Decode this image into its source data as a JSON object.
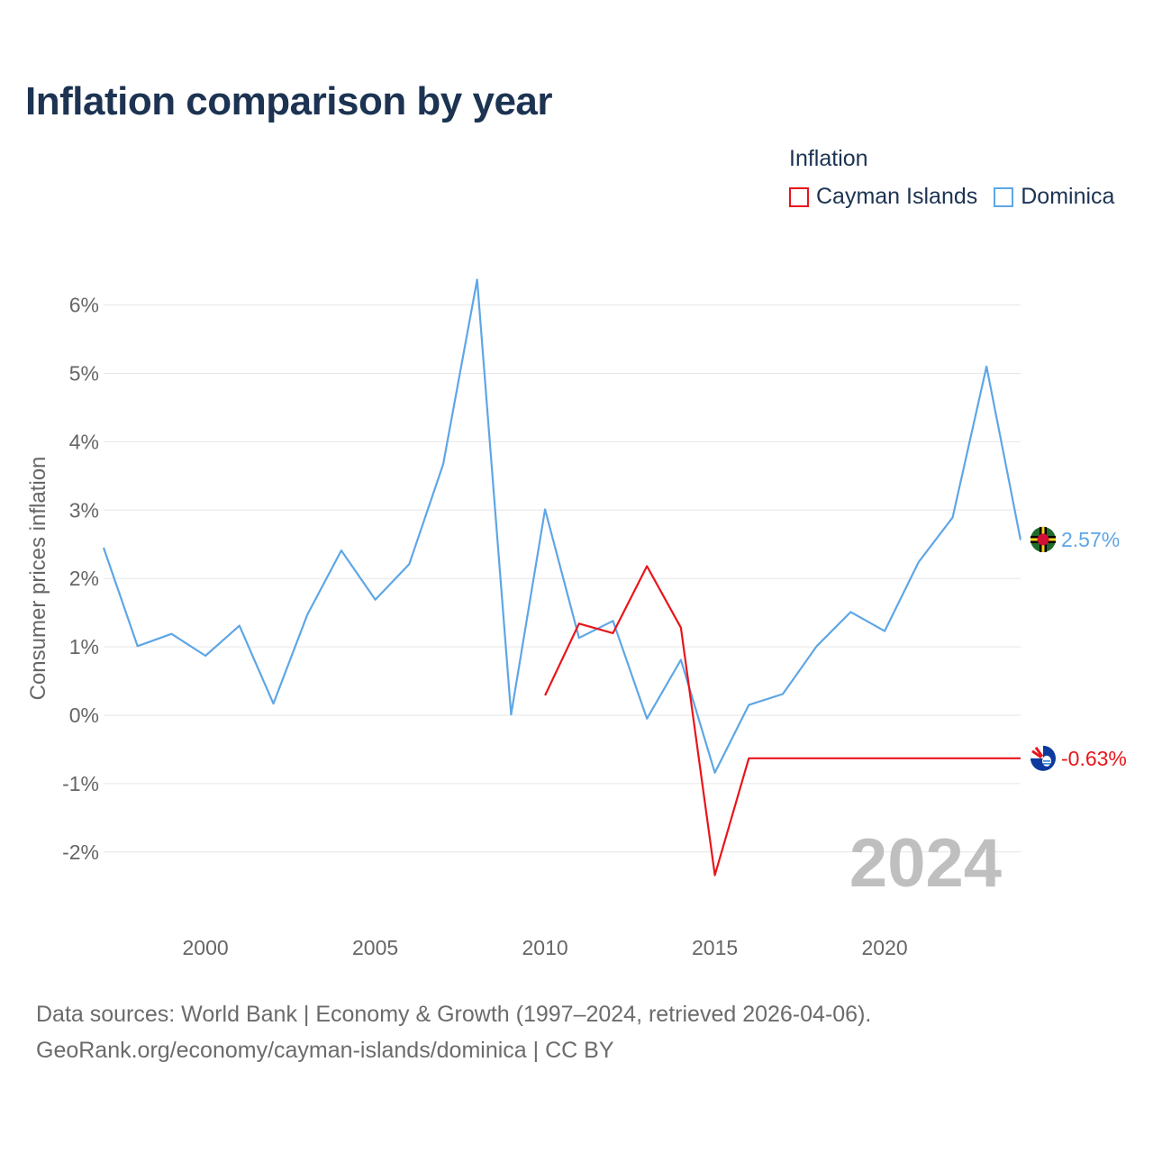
{
  "title": "Inflation comparison by year",
  "legend": {
    "title": "Inflation",
    "items": [
      {
        "label": "Cayman Islands",
        "color": "#e8151b"
      },
      {
        "label": "Dominica",
        "color": "#5ea6e6"
      }
    ]
  },
  "year_mark": "2024",
  "footer": {
    "line1": "Data sources: World Bank | Economy & Growth (1997–2024, retrieved 2026-04-06).",
    "line2": "GeoRank.org/economy/cayman-islands/dominica | CC BY"
  },
  "chart_data": {
    "type": "line",
    "title": "Inflation comparison by year",
    "xlabel": "",
    "ylabel": "Consumer prices inflation",
    "xlim": [
      1997,
      2024
    ],
    "ylim": [
      -2.8,
      6.6
    ],
    "x_ticks": [
      2000,
      2005,
      2010,
      2015,
      2020
    ],
    "y_ticks": [
      -2,
      -1,
      0,
      1,
      2,
      3,
      4,
      5,
      6
    ],
    "y_tick_labels": [
      "-2%",
      "-1%",
      "0%",
      "1%",
      "2%",
      "3%",
      "4%",
      "5%",
      "6%"
    ],
    "grid": true,
    "series": [
      {
        "name": "Dominica",
        "color": "#5ea6e6",
        "end_label": "2.57%",
        "flag_icon": "dominica-flag-icon",
        "x": [
          1997,
          1998,
          1999,
          2000,
          2001,
          2002,
          2003,
          2004,
          2005,
          2006,
          2007,
          2008,
          2009,
          2010,
          2011,
          2012,
          2013,
          2014,
          2015,
          2016,
          2017,
          2018,
          2019,
          2020,
          2021,
          2022,
          2023,
          2024
        ],
        "values": [
          2.45,
          1.01,
          1.19,
          0.87,
          1.31,
          0.17,
          1.47,
          2.41,
          1.69,
          2.21,
          3.67,
          6.37,
          0.01,
          3.01,
          1.13,
          1.38,
          -0.05,
          0.81,
          -0.84,
          0.15,
          0.31,
          1.01,
          1.51,
          1.23,
          2.24,
          2.89,
          5.1,
          2.57
        ]
      },
      {
        "name": "Cayman Islands",
        "color": "#e8151b",
        "end_label": "-0.63%",
        "flag_icon": "cayman-islands-flag-icon",
        "x": [
          2010,
          2011,
          2012,
          2013,
          2014,
          2015,
          2016,
          2017,
          2018,
          2019,
          2020,
          2021,
          2022,
          2023,
          2024
        ],
        "values": [
          0.29,
          1.34,
          1.2,
          2.18,
          1.28,
          -2.34,
          -0.63,
          -0.63,
          -0.63,
          -0.63,
          -0.63,
          -0.63,
          -0.63,
          -0.63,
          -0.63
        ]
      }
    ]
  }
}
